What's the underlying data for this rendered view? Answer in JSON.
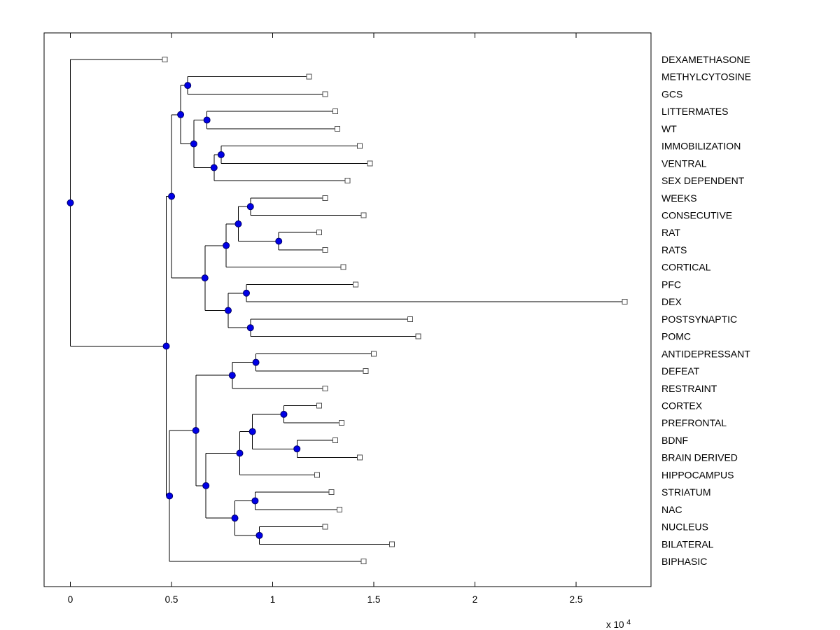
{
  "figure": {
    "background": "#ffffff",
    "axis": {
      "x_ticks": [
        0,
        0.5,
        1,
        1.5,
        2,
        2.5
      ],
      "x_tick_labels": [
        "0",
        "0.5",
        "1",
        "1.5",
        "2",
        "2.5"
      ],
      "x_range": [
        -0.13,
        2.87
      ],
      "exponent_label": "x 10",
      "exponent": "4",
      "box": true
    },
    "colors": {
      "line": "#000000",
      "branch_marker_fill": "#0000e6",
      "branch_marker_edge": "#000066",
      "leaf_marker_fill": "#ffffff",
      "leaf_marker_edge": "#4d4d4d",
      "text": "#000000"
    }
  },
  "chart_data": {
    "type": "dendrogram",
    "orientation": "horizontal",
    "value_scale": "x 10^4",
    "legend": "none",
    "grid": false,
    "leaf_labels": [
      "DEXAMETHASONE",
      "METHYLCYTOSINE",
      "GCS",
      "LITTERMATES",
      "WT",
      "IMMOBILIZATION",
      "VENTRAL",
      "SEX DEPENDENT",
      "WEEKS",
      "CONSECUTIVE",
      "RAT",
      "RATS",
      "CORTICAL",
      "PFC",
      "DEX",
      "POSTSYNAPTIC",
      "POMC",
      "ANTIDEPRESSANT",
      "DEFEAT",
      "RESTRAINT",
      "CORTEX",
      "PREFRONTAL",
      "BDNF",
      "BRAIN DERIVED",
      "HIPPOCAMPUS",
      "STRIATUM",
      "NAC",
      "NUCLEUS",
      "BILATERAL",
      "BIPHASIC"
    ],
    "tree": {
      "x": 0.0,
      "children": [
        {
          "name": "DEXAMETHASONE",
          "x": 0.467
        },
        {
          "x": 0.474,
          "children": [
            {
              "x": 0.5,
              "children": [
                {
                  "x": 0.545,
                  "children": [
                    {
                      "x": 0.58,
                      "children": [
                        {
                          "name": "METHYLCYTOSINE",
                          "x": 1.18
                        },
                        {
                          "name": "GCS",
                          "x": 1.26
                        }
                      ]
                    },
                    {
                      "x": 0.61,
                      "children": [
                        {
                          "x": 0.675,
                          "children": [
                            {
                              "name": "LITTERMATES",
                              "x": 1.31
                            },
                            {
                              "name": "WT",
                              "x": 1.32
                            }
                          ]
                        },
                        {
                          "x": 0.71,
                          "children": [
                            {
                              "x": 0.745,
                              "children": [
                                {
                                  "name": "IMMOBILIZATION",
                                  "x": 1.43
                                },
                                {
                                  "name": "VENTRAL",
                                  "x": 1.48
                                }
                              ]
                            },
                            {
                              "name": "SEX DEPENDENT",
                              "x": 1.37
                            }
                          ]
                        }
                      ]
                    }
                  ]
                },
                {
                  "x": 0.665,
                  "children": [
                    {
                      "x": 0.77,
                      "children": [
                        {
                          "x": 0.83,
                          "children": [
                            {
                              "x": 0.89,
                              "children": [
                                {
                                  "name": "WEEKS",
                                  "x": 1.26
                                },
                                {
                                  "name": "CONSECUTIVE",
                                  "x": 1.45
                                }
                              ]
                            },
                            {
                              "x": 1.03,
                              "children": [
                                {
                                  "name": "RAT",
                                  "x": 1.23
                                },
                                {
                                  "name": "RATS",
                                  "x": 1.26
                                }
                              ]
                            }
                          ]
                        },
                        {
                          "name": "CORTICAL",
                          "x": 1.35
                        }
                      ]
                    },
                    {
                      "x": 0.78,
                      "children": [
                        {
                          "x": 0.87,
                          "children": [
                            {
                              "name": "PFC",
                              "x": 1.41
                            },
                            {
                              "name": "DEX",
                              "x": 2.74
                            }
                          ]
                        },
                        {
                          "x": 0.89,
                          "children": [
                            {
                              "name": "POSTSYNAPTIC",
                              "x": 1.68
                            },
                            {
                              "name": "POMC",
                              "x": 1.72
                            }
                          ]
                        }
                      ]
                    }
                  ]
                }
              ]
            },
            {
              "x": 0.49,
              "children": [
                {
                  "x": 0.62,
                  "children": [
                    {
                      "x": 0.8,
                      "children": [
                        {
                          "x": 0.917,
                          "children": [
                            {
                              "name": "ANTIDEPRESSANT",
                              "x": 1.5
                            },
                            {
                              "name": "DEFEAT",
                              "x": 1.46
                            }
                          ]
                        },
                        {
                          "name": "RESTRAINT",
                          "x": 1.26
                        }
                      ]
                    },
                    {
                      "x": 0.67,
                      "children": [
                        {
                          "x": 0.837,
                          "children": [
                            {
                              "x": 0.9,
                              "children": [
                                {
                                  "x": 1.055,
                                  "children": [
                                    {
                                      "name": "CORTEX",
                                      "x": 1.23
                                    },
                                    {
                                      "name": "PREFRONTAL",
                                      "x": 1.34
                                    }
                                  ]
                                },
                                {
                                  "x": 1.12,
                                  "children": [
                                    {
                                      "name": "BDNF",
                                      "x": 1.31
                                    },
                                    {
                                      "name": "BRAIN DERIVED",
                                      "x": 1.43
                                    }
                                  ]
                                }
                              ]
                            },
                            {
                              "name": "HIPPOCAMPUS",
                              "x": 1.22
                            }
                          ]
                        },
                        {
                          "x": 0.813,
                          "children": [
                            {
                              "x": 0.913,
                              "children": [
                                {
                                  "name": "STRIATUM",
                                  "x": 1.29
                                },
                                {
                                  "name": "NAC",
                                  "x": 1.33
                                }
                              ]
                            },
                            {
                              "x": 0.934,
                              "children": [
                                {
                                  "name": "NUCLEUS",
                                  "x": 1.26
                                },
                                {
                                  "name": "BILATERAL",
                                  "x": 1.59
                                }
                              ]
                            }
                          ]
                        }
                      ]
                    }
                  ]
                },
                {
                  "name": "BIPHASIC",
                  "x": 1.45
                }
              ]
            }
          ]
        }
      ]
    }
  }
}
